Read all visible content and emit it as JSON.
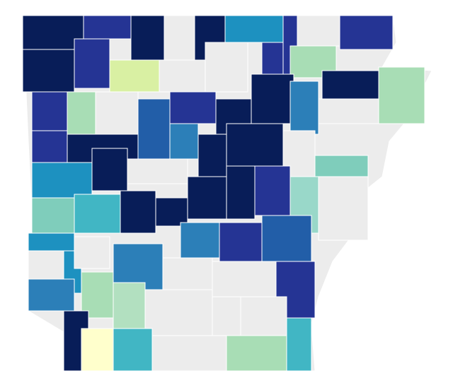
{
  "map": {
    "regions": [
      {
        "color": "#081d58"
      },
      {
        "color": "#253494"
      },
      {
        "color": "#081d58"
      },
      {
        "color": "#ececec"
      },
      {
        "color": "#081d58"
      },
      {
        "color": "#1d91c0"
      },
      {
        "color": "#ececec"
      },
      {
        "color": "#253494"
      },
      {
        "color": "#253494"
      },
      {
        "color": "#081d58"
      },
      {
        "color": "#253494"
      },
      {
        "color": "#d9f0a3"
      },
      {
        "color": "#ececec"
      },
      {
        "color": "#ececec"
      },
      {
        "color": "#253494"
      },
      {
        "color": "#a8ddb5"
      },
      {
        "color": "#081d58"
      },
      {
        "color": "#a8ddb5"
      },
      {
        "color": "#253494"
      },
      {
        "color": "#a8ddb5"
      },
      {
        "color": "#ececec"
      },
      {
        "color": "#225ea8"
      },
      {
        "color": "#253494"
      },
      {
        "color": "#081d58"
      },
      {
        "color": "#081d58"
      },
      {
        "color": "#2c7fb8"
      },
      {
        "color": "#ececec"
      },
      {
        "color": "#253494"
      },
      {
        "color": "#081d58"
      },
      {
        "color": "#2c7fb8"
      },
      {
        "color": "#081d58"
      },
      {
        "color": "#081d58"
      },
      {
        "color": "#ececec"
      },
      {
        "color": "#7fcdbb"
      },
      {
        "color": "#1d91c0"
      },
      {
        "color": "#081d58"
      },
      {
        "color": "#ececec"
      },
      {
        "color": "#081d58"
      },
      {
        "color": "#081d58"
      },
      {
        "color": "#253494"
      },
      {
        "color": "#99d8c9"
      },
      {
        "color": "#ececec"
      },
      {
        "color": "#7fcdbb"
      },
      {
        "color": "#41b6c4"
      },
      {
        "color": "#081d58"
      },
      {
        "color": "#081d58"
      },
      {
        "color": "#2c7fb8"
      },
      {
        "color": "#253494"
      },
      {
        "color": "#225ea8"
      },
      {
        "color": "#1d91c0"
      },
      {
        "color": "#ececec"
      },
      {
        "color": "#1d91c0"
      },
      {
        "color": "#ececec"
      },
      {
        "color": "#2c7fb8"
      },
      {
        "color": "#ececec"
      },
      {
        "color": "#ececec"
      },
      {
        "color": "#253494"
      },
      {
        "color": "#2c7fb8"
      },
      {
        "color": "#a8ddb5"
      },
      {
        "color": "#b2e0c0"
      },
      {
        "color": "#ececec"
      },
      {
        "color": "#ececec"
      },
      {
        "color": "#ececec"
      },
      {
        "color": "#081d58"
      },
      {
        "color": "#ffffcc"
      },
      {
        "color": "#41b6c4"
      },
      {
        "color": "#ececec"
      },
      {
        "color": "#a8ddb5"
      },
      {
        "color": "#41b6c4"
      }
    ]
  }
}
